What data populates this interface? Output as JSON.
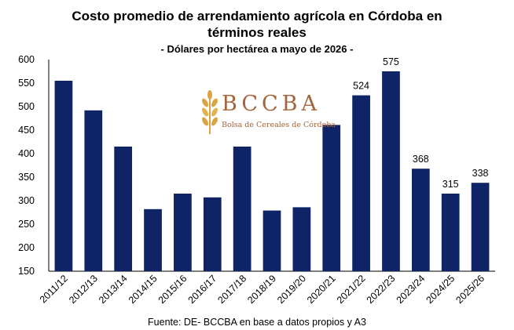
{
  "title_line1": "Costo promedio de arrendamiento agrícola en Córdoba en",
  "title_line2": "términos reales",
  "subtitle": "- Dólares por hectárea a mayo de 2026 -",
  "source": "Fuente: DE- BCCBA en base a datos propios y A3",
  "logo": {
    "name": "BCCBA",
    "subtitle": "Bolsa de Cereales de Córdoba",
    "icon": "wheat-icon",
    "color": "#a5643a"
  },
  "chart_data": {
    "type": "bar",
    "title": "Costo promedio de arrendamiento agrícola en Córdoba en términos reales",
    "subtitle": "- Dólares por hectárea a mayo de 2026 -",
    "xlabel": "",
    "ylabel": "",
    "categories": [
      "2011/12",
      "2012/13",
      "2013/14",
      "2014/15",
      "2015/16",
      "2016/17",
      "2017/18",
      "2018/19",
      "2019/20",
      "2020/21",
      "2021/22",
      "2022/23",
      "2023/24",
      "2024/25",
      "2025/26"
    ],
    "values": [
      555,
      492,
      415,
      282,
      315,
      307,
      415,
      279,
      286,
      461,
      524,
      575,
      368,
      315,
      338
    ],
    "data_labels": {
      "10": "524",
      "11": "575",
      "12": "368",
      "13": "315",
      "14": "338"
    },
    "ylim": [
      150,
      600
    ],
    "yticks": [
      150,
      200,
      250,
      300,
      350,
      400,
      450,
      500,
      550,
      600
    ],
    "bar_color": "#0e2466",
    "grid": false,
    "legend": "none"
  }
}
